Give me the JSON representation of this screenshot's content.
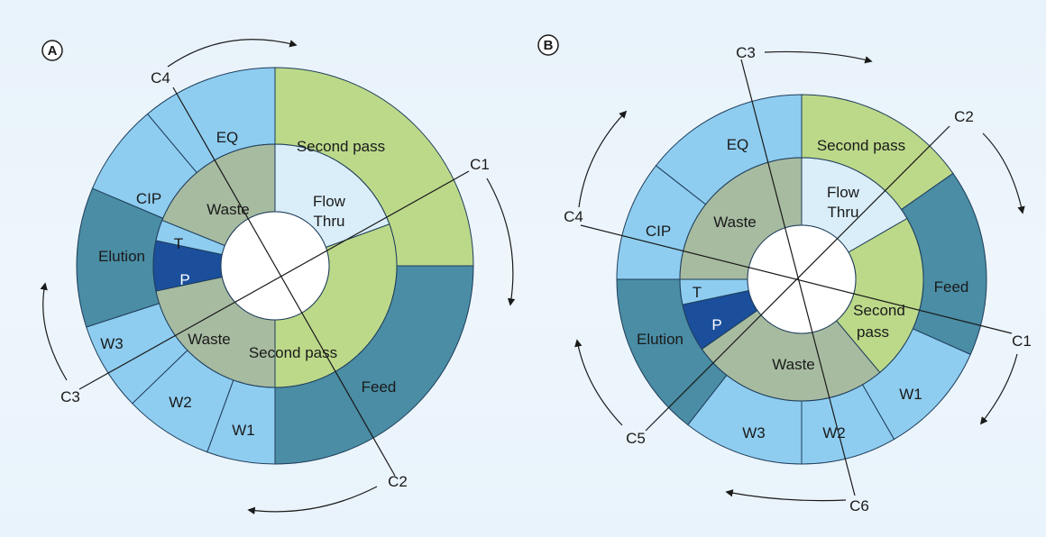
{
  "colors": {
    "light_blue": "#8ecdf0",
    "teal": "#4a8da5",
    "green": "#bcd98a",
    "gray_green": "#a7bba1",
    "pale_blue": "#d9eef9",
    "dark_blue": "#1b4f9c"
  },
  "panel_a": {
    "badge": "A",
    "outer": [
      {
        "label": "Second pass",
        "color": "green"
      },
      {
        "label": "Feed",
        "color": "teal"
      },
      {
        "label": "W1",
        "color": "light_blue"
      },
      {
        "label": "W2",
        "color": "light_blue"
      },
      {
        "label": "W3",
        "color": "light_blue"
      },
      {
        "label": "Elution",
        "color": "teal"
      },
      {
        "label": "CIP",
        "color": "light_blue"
      },
      {
        "label": "EQ",
        "color": "light_blue"
      }
    ],
    "inner": [
      {
        "label": "Flow\nThru",
        "line1": "Flow",
        "line2": "Thru",
        "color": "pale_blue"
      },
      {
        "label": "Second pass",
        "color": "green"
      },
      {
        "label": "Waste",
        "color": "gray_green"
      },
      {
        "label": "P",
        "color": "dark_blue"
      },
      {
        "label": "T",
        "color": "light_blue"
      },
      {
        "label": "Waste",
        "color": "gray_green"
      }
    ],
    "cuts": [
      "C1",
      "C2",
      "C3",
      "C4"
    ]
  },
  "panel_b": {
    "badge": "B",
    "outer": [
      {
        "label": "Second pass",
        "color": "green"
      },
      {
        "label": "Feed",
        "color": "teal"
      },
      {
        "label": "W1",
        "color": "light_blue"
      },
      {
        "label": "W2",
        "color": "light_blue"
      },
      {
        "label": "W3",
        "color": "light_blue"
      },
      {
        "label": "Elution",
        "color": "teal"
      },
      {
        "label": "CIP",
        "color": "light_blue"
      },
      {
        "label": "EQ",
        "color": "light_blue"
      }
    ],
    "inner": [
      {
        "label": "Flow\nThru",
        "line1": "Flow",
        "line2": "Thru",
        "color": "pale_blue"
      },
      {
        "label": "Second\npass",
        "line1": "Second",
        "line2": "pass",
        "color": "green"
      },
      {
        "label": "Waste",
        "color": "gray_green"
      },
      {
        "label": "P",
        "color": "dark_blue"
      },
      {
        "label": "T",
        "color": "light_blue"
      },
      {
        "label": "Waste",
        "color": "gray_green"
      }
    ],
    "cuts": [
      "C1",
      "C2",
      "C3",
      "C4",
      "C5",
      "C6"
    ]
  }
}
